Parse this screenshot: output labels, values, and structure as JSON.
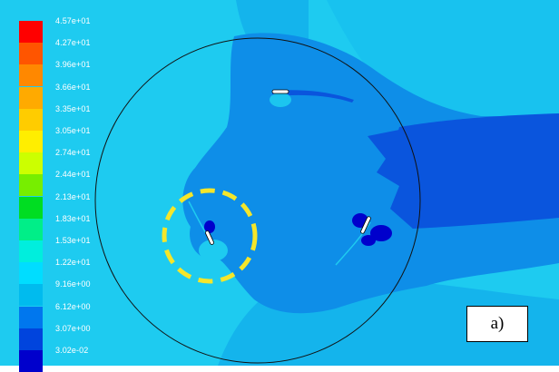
{
  "panel_label": "a)",
  "colorbar": {
    "entries": [
      {
        "label": "4.57e+01",
        "color": "#ff0000"
      },
      {
        "label": "4.27e+01",
        "color": "#ff5500"
      },
      {
        "label": "3.96e+01",
        "color": "#ff8800"
      },
      {
        "label": "3.66e+01",
        "color": "#ffaa00"
      },
      {
        "label": "3.35e+01",
        "color": "#ffcc00"
      },
      {
        "label": "3.05e+01",
        "color": "#ffee00"
      },
      {
        "label": "2.74e+01",
        "color": "#ccff00"
      },
      {
        "label": "2.44e+01",
        "color": "#77ee00"
      },
      {
        "label": "2.13e+01",
        "color": "#00dd22"
      },
      {
        "label": "1.83e+01",
        "color": "#00ee88"
      },
      {
        "label": "1.53e+01",
        "color": "#00eedd"
      },
      {
        "label": "1.22e+01",
        "color": "#00ddff"
      },
      {
        "label": "9.16e+00",
        "color": "#00bbee"
      },
      {
        "label": "6.12e+00",
        "color": "#0077ee"
      },
      {
        "label": "3.07e+00",
        "color": "#0044dd"
      },
      {
        "label": "3.02e-02",
        "color": "#0000cc"
      }
    ]
  },
  "field_colors": {
    "background_light": "#1ecbf0",
    "mid_blue": "#0e8ee8",
    "dark_blue": "#0a55dd",
    "deep_blue": "#0000cc",
    "highlight_circle": "#f5e62a",
    "rotor_circle": "#111111"
  }
}
